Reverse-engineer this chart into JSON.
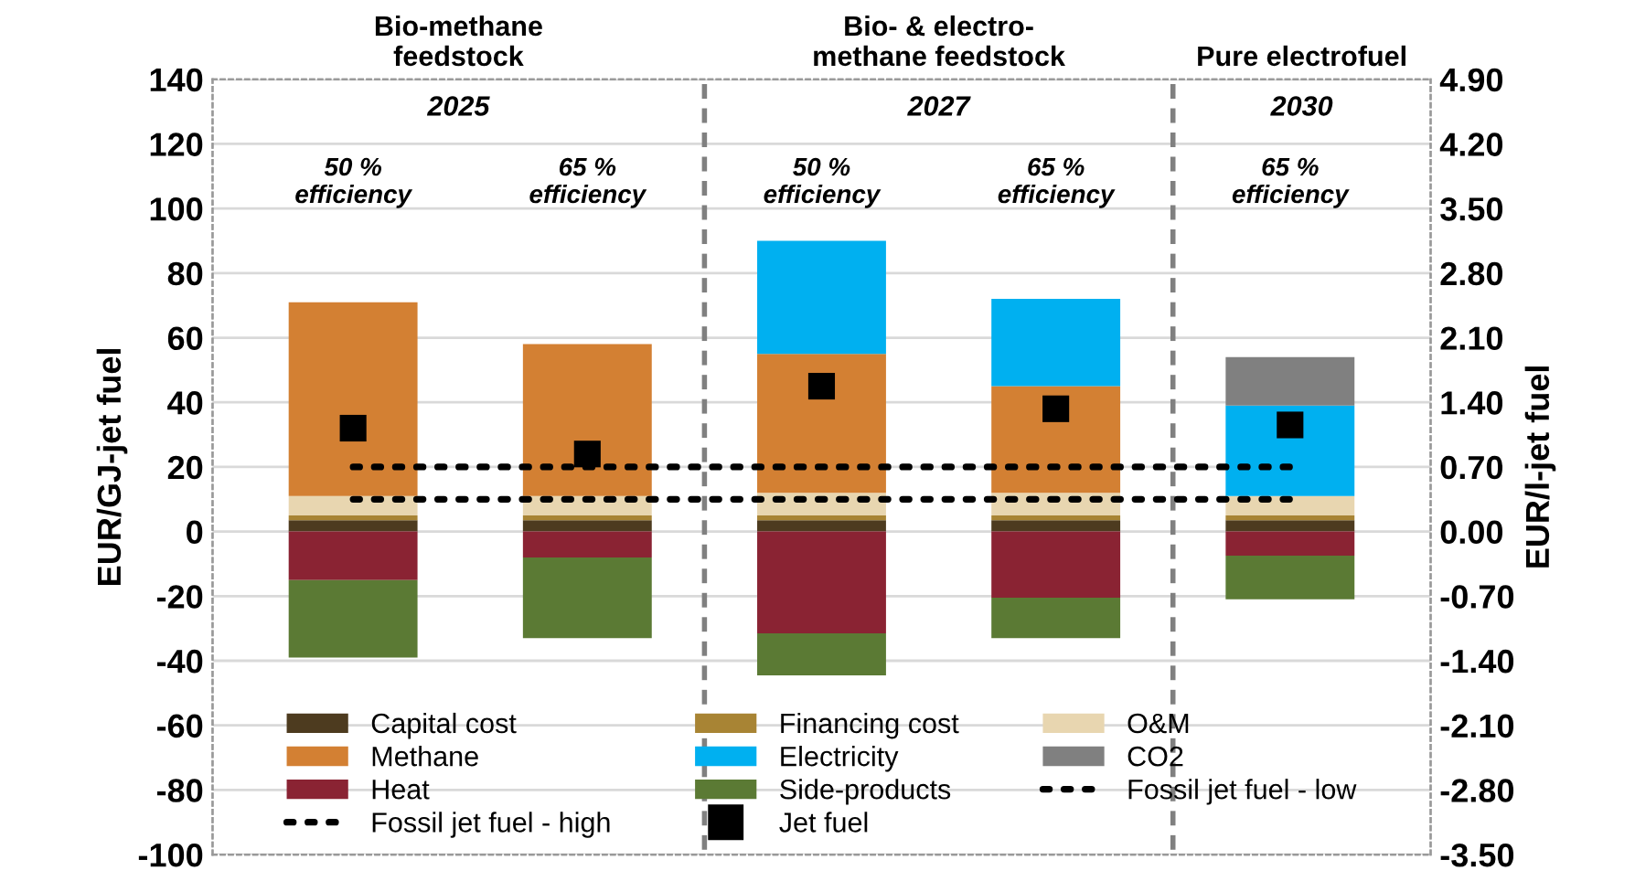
{
  "chart_data": {
    "type": "bar",
    "stacked": true,
    "ylabel": "EUR/GJ-jet fuel",
    "y2label": "EUR/l-jet fuel",
    "categories": [
      "50 %\nefficiency",
      "65 %\nefficiency",
      "50 %\nefficiency",
      "65 %\nefficiency",
      "65 %\nefficiency"
    ],
    "ylim": [
      -100,
      140
    ],
    "yticks": [
      -100,
      -80,
      -60,
      -40,
      -20,
      0,
      20,
      40,
      60,
      80,
      100,
      120,
      140
    ],
    "y2lim": [
      -3.5,
      4.9
    ],
    "y2ticks": [
      {
        "value": -3.5,
        "label": "-3.50"
      },
      {
        "value": -2.8,
        "label": "-2.80"
      },
      {
        "value": -2.1,
        "label": "-2.10"
      },
      {
        "value": -1.4,
        "label": "-1.40"
      },
      {
        "value": -0.7,
        "label": "-0.70"
      },
      {
        "value": 0,
        "label": "0.00"
      },
      {
        "value": 0.7,
        "label": "0.70"
      },
      {
        "value": 1.4,
        "label": "1.40"
      },
      {
        "value": 2.1,
        "label": "2.10"
      },
      {
        "value": 2.8,
        "label": "2.80"
      },
      {
        "value": 3.5,
        "label": "3.50"
      },
      {
        "value": 4.2,
        "label": "4.20"
      },
      {
        "value": 4.9,
        "label": "4.90"
      }
    ],
    "grid": "y",
    "legend": "bottom",
    "series": [
      {
        "name": "Capital cost",
        "color": "#4d3b1f",
        "values": [
          3.5,
          3.5,
          3.5,
          3.5,
          3.5
        ]
      },
      {
        "name": "Financing cost",
        "color": "#a88434",
        "values": [
          1.5,
          1.5,
          1.5,
          1.5,
          1.5
        ]
      },
      {
        "name": "O&M",
        "color": "#e8d6b0",
        "values": [
          6,
          6,
          7,
          7,
          6
        ]
      },
      {
        "name": "Methane",
        "color": "#d38033",
        "values": [
          60,
          47,
          43,
          33,
          0
        ]
      },
      {
        "name": "Electricity",
        "color": "#00b0f0",
        "values": [
          0,
          0,
          35,
          27,
          28
        ]
      },
      {
        "name": "CO2",
        "color": "#808080",
        "values": [
          0,
          0,
          0,
          0,
          15
        ]
      },
      {
        "name": "Heat",
        "color": "#8a2333",
        "values": [
          -15,
          -8,
          -31.5,
          -20.5,
          -7.5
        ]
      },
      {
        "name": "Side-products",
        "color": "#5b7a34",
        "values": [
          -24,
          -25,
          -13,
          -12.5,
          -13.5
        ]
      },
      {
        "name": "Fossil jet fuel - low",
        "type": "line",
        "color": "#000000",
        "line_style": "dotted",
        "values": [
          10,
          10,
          10,
          10,
          10
        ]
      },
      {
        "name": "Fossil jet fuel - high",
        "type": "line",
        "color": "#000000",
        "line_style": "dotted",
        "values": [
          20,
          20,
          20,
          20,
          20
        ]
      },
      {
        "name": "Jet fuel",
        "type": "scatter",
        "marker": "square",
        "color": "#000000",
        "values": [
          32,
          24,
          45,
          38,
          33
        ]
      }
    ],
    "annotations": [
      "Bio-methane\nfeedstock",
      "Bio- & electro-\nmethane feedstock",
      "Pure electrofuel",
      "2025",
      "2027",
      "2030"
    ]
  }
}
